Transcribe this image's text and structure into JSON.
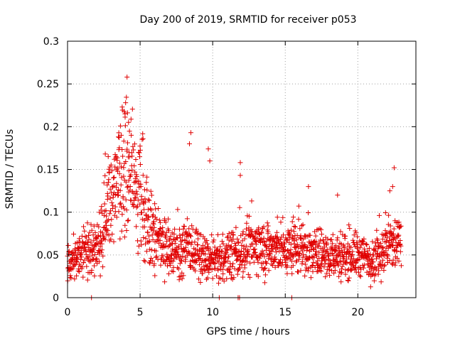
{
  "chart_data": {
    "type": "scatter",
    "title": "Day 200 of 2019, SRMTID for receiver p053",
    "xlabel": "GPS time / hours",
    "ylabel": "SRMTID / TECUs",
    "xlim": [
      0,
      24
    ],
    "ylim": [
      0,
      0.3
    ],
    "xticks": [
      0,
      5,
      10,
      15,
      20
    ],
    "yticks": [
      0,
      0.05,
      0.1,
      0.15,
      0.2,
      0.25,
      0.3
    ],
    "xtick_labels": [
      "0",
      "5",
      "10",
      "15",
      "20"
    ],
    "ytick_labels": [
      "0",
      "0.05",
      "0.1",
      "0.15",
      "0.2",
      "0.25",
      "0.3"
    ],
    "grid": true,
    "marker": "+",
    "color": "#e00000",
    "series_profile": [
      [
        0.0,
        0.048
      ],
      [
        0.5,
        0.046
      ],
      [
        1.0,
        0.05
      ],
      [
        1.5,
        0.055
      ],
      [
        2.0,
        0.06
      ],
      [
        2.5,
        0.08
      ],
      [
        3.0,
        0.11
      ],
      [
        3.5,
        0.135
      ],
      [
        4.0,
        0.14
      ],
      [
        4.5,
        0.13
      ],
      [
        5.0,
        0.115
      ],
      [
        5.5,
        0.09
      ],
      [
        6.0,
        0.07
      ],
      [
        6.5,
        0.06
      ],
      [
        7.0,
        0.058
      ],
      [
        8.0,
        0.055
      ],
      [
        8.5,
        0.06
      ],
      [
        9.0,
        0.05
      ],
      [
        9.5,
        0.045
      ],
      [
        10.0,
        0.042
      ],
      [
        11.0,
        0.047
      ],
      [
        12.0,
        0.055
      ],
      [
        13.0,
        0.06
      ],
      [
        14.0,
        0.057
      ],
      [
        15.0,
        0.055
      ],
      [
        16.0,
        0.06
      ],
      [
        17.0,
        0.052
      ],
      [
        18.0,
        0.048
      ],
      [
        19.0,
        0.05
      ],
      [
        20.0,
        0.05
      ],
      [
        21.0,
        0.045
      ],
      [
        22.0,
        0.06
      ],
      [
        23.0,
        0.065
      ]
    ],
    "spikes": [
      [
        4.1,
        0.258
      ],
      [
        4.0,
        0.228
      ],
      [
        3.9,
        0.218
      ],
      [
        4.2,
        0.205
      ],
      [
        3.7,
        0.19
      ],
      [
        3.5,
        0.188
      ],
      [
        8.5,
        0.193
      ],
      [
        8.4,
        0.18
      ],
      [
        9.7,
        0.174
      ],
      [
        9.8,
        0.16
      ],
      [
        11.9,
        0.158
      ],
      [
        11.9,
        0.143
      ],
      [
        16.6,
        0.13
      ],
      [
        18.6,
        0.12
      ],
      [
        22.5,
        0.152
      ],
      [
        22.4,
        0.13
      ],
      [
        22.2,
        0.125
      ],
      [
        5.2,
        0.186
      ],
      [
        2.6,
        0.168
      ],
      [
        2.8,
        0.165
      ]
    ],
    "zero_points": [
      1.65,
      10.45,
      11.75,
      11.85,
      15.45
    ],
    "n_points": 1700
  }
}
